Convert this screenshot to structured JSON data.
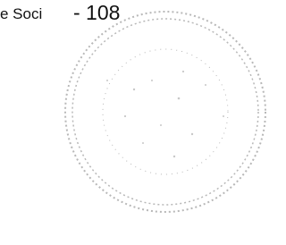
{
  "header": {
    "fragment": "e Soci",
    "page": "- 108"
  }
}
